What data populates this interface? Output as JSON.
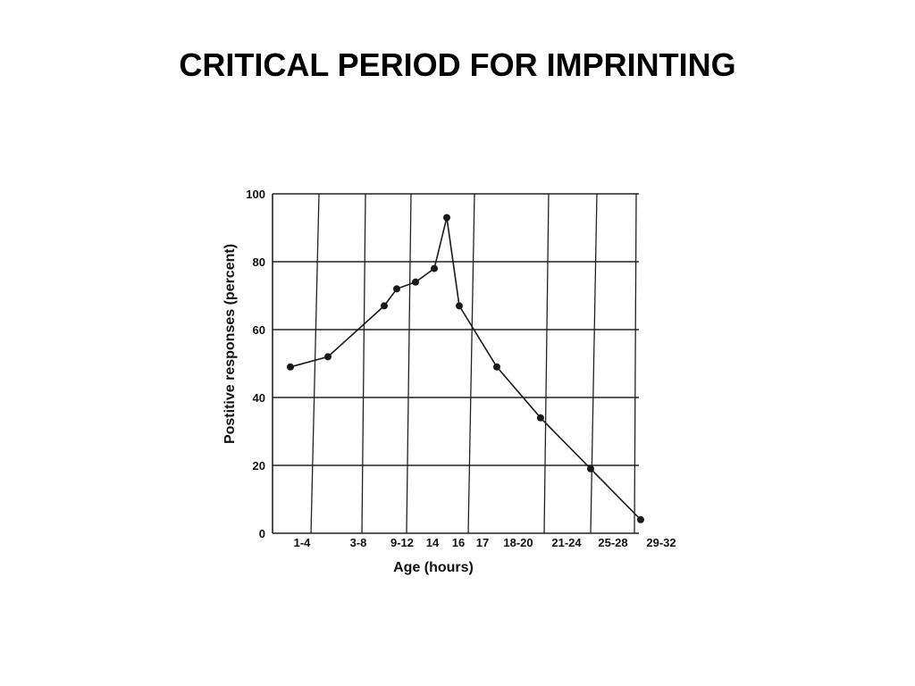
{
  "slide": {
    "title": "CRITICAL PERIOD FOR IMPRINTING"
  },
  "chart_data": {
    "type": "line",
    "title": "",
    "xlabel": "Age (hours)",
    "ylabel": "Postitive responses (percent)",
    "ylim": [
      0,
      100
    ],
    "yticks": [
      0,
      20,
      40,
      60,
      80,
      100
    ],
    "grid": true,
    "x_tick_labels": [
      "1-4",
      "3-8",
      "9-12",
      "14",
      "16",
      "17",
      "18-20",
      "21-24",
      "25-28",
      "29-32"
    ],
    "series": [
      {
        "x": [
          2.5,
          5.5,
          10,
          11,
          12.5,
          14,
          15,
          16,
          19,
          22.5,
          26.5,
          30.5
        ],
        "y": [
          49,
          52,
          67,
          72,
          74,
          78,
          93,
          67,
          49,
          34,
          19,
          4
        ]
      }
    ],
    "colors": {
      "line": "#1a1a1a",
      "grid": "#222222"
    }
  }
}
